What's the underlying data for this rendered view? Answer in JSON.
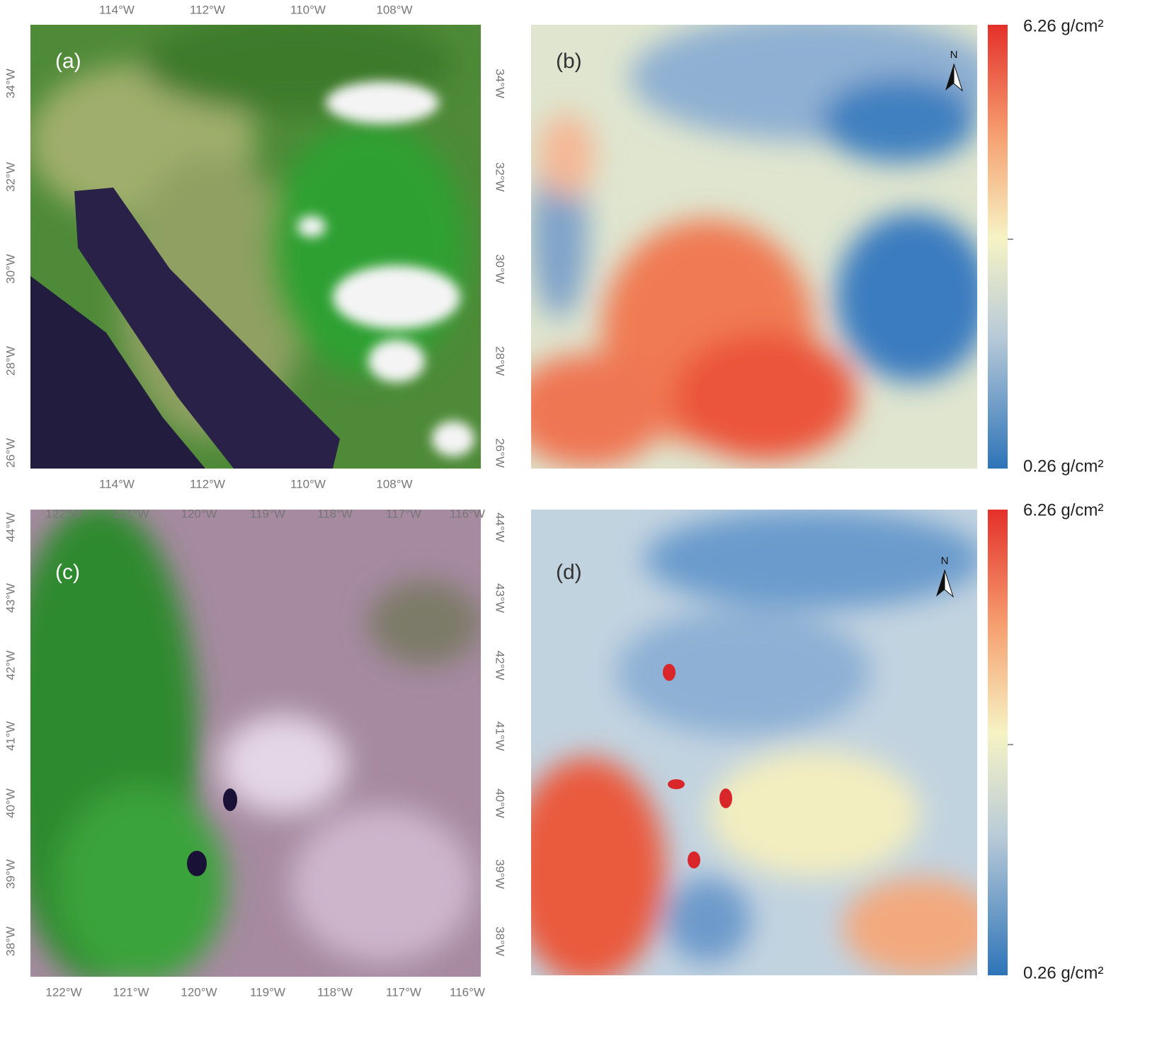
{
  "panels": [
    {
      "label": "(a)",
      "x_ticks": [
        "114°W",
        "112°W",
        "110°W",
        "108°W"
      ],
      "y_ticks": [
        "34°W",
        "32°W",
        "30°W",
        "28°W",
        "26°W"
      ]
    },
    {
      "label": "(b)",
      "north": "N",
      "colorbar": {
        "max_label": "6.26 g/cm²",
        "min_label": "0.26 g/cm²"
      }
    },
    {
      "label": "(c)",
      "x_ticks": [
        "122°W",
        "121°W",
        "120°W",
        "119°W",
        "118°W",
        "117°W",
        "116°W"
      ],
      "y_ticks": [
        "44°W",
        "43°W",
        "42°W",
        "41°W",
        "40°W",
        "39°W",
        "38°W"
      ]
    },
    {
      "label": "(d)",
      "north": "N",
      "colorbar": {
        "max_label": "6.26 g/cm²",
        "min_label": "0.26 g/cm²"
      }
    }
  ]
}
